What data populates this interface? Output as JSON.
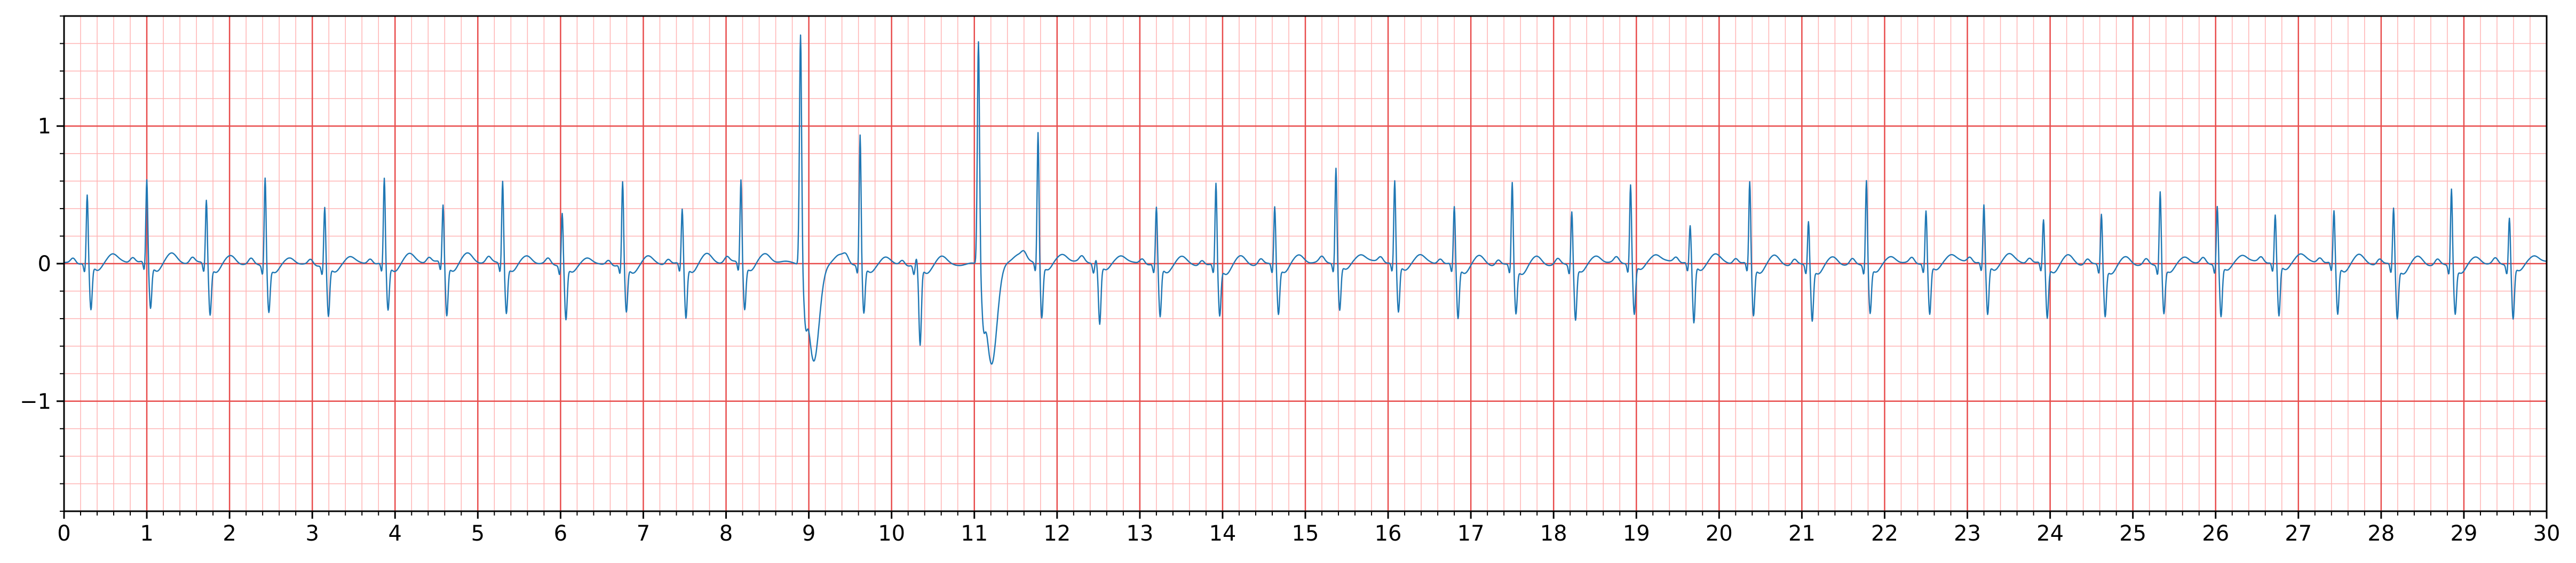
{
  "chart_data": {
    "type": "line",
    "title": "",
    "xlabel": "",
    "ylabel": "",
    "xlim": [
      0,
      30
    ],
    "ylim": [
      -1.8,
      1.8
    ],
    "x_ticks": [
      0,
      1,
      2,
      3,
      4,
      5,
      6,
      7,
      8,
      9,
      10,
      11,
      12,
      13,
      14,
      15,
      16,
      17,
      18,
      19,
      20,
      21,
      22,
      23,
      24,
      25,
      26,
      27,
      28,
      29,
      30
    ],
    "x_tick_labels": [
      "0",
      "1",
      "2",
      "3",
      "4",
      "5",
      "6",
      "7",
      "8",
      "9",
      "10",
      "11",
      "12",
      "13",
      "14",
      "15",
      "16",
      "17",
      "18",
      "19",
      "20",
      "21",
      "22",
      "23",
      "24",
      "25",
      "26",
      "27",
      "28",
      "29",
      "30"
    ],
    "y_ticks": [
      -1,
      0,
      1
    ],
    "y_tick_labels": [
      "−1",
      "0",
      "1"
    ],
    "grid": true,
    "major_grid": {
      "x_step": 1,
      "y_step": 1,
      "color": "#e84c4c"
    },
    "minor_grid": {
      "x_step": 0.2,
      "y_step": 0.2,
      "color": "#ffb3b3"
    },
    "line_color": "#1f77b4",
    "baseline": 0.0,
    "beats": [
      {
        "t": 0.28,
        "amp": 0.5,
        "s": -0.33,
        "type": "normal"
      },
      {
        "t": 1.0,
        "amp": 0.6,
        "s": -0.32,
        "type": "normal"
      },
      {
        "t": 1.72,
        "amp": 0.47,
        "s": -0.35,
        "type": "normal"
      },
      {
        "t": 2.43,
        "amp": 0.65,
        "s": -0.32,
        "type": "normal"
      },
      {
        "t": 3.15,
        "amp": 0.43,
        "s": -0.36,
        "type": "normal"
      },
      {
        "t": 3.87,
        "amp": 0.62,
        "s": -0.33,
        "type": "normal"
      },
      {
        "t": 4.58,
        "amp": 0.42,
        "s": -0.37,
        "type": "normal"
      },
      {
        "t": 5.3,
        "amp": 0.61,
        "s": -0.34,
        "type": "normal"
      },
      {
        "t": 6.02,
        "amp": 0.39,
        "s": -0.38,
        "type": "normal"
      },
      {
        "t": 6.75,
        "amp": 0.61,
        "s": -0.33,
        "type": "normal"
      },
      {
        "t": 7.47,
        "amp": 0.4,
        "s": -0.38,
        "type": "normal"
      },
      {
        "t": 8.18,
        "amp": 0.61,
        "s": -0.32,
        "type": "normal"
      },
      {
        "t": 8.9,
        "amp": 1.7,
        "s": -0.72,
        "type": "ectopic"
      },
      {
        "t": 9.62,
        "amp": 0.95,
        "s": -0.34,
        "type": "normal"
      },
      {
        "t": 10.3,
        "amp": 0.05,
        "s": -0.57,
        "type": "normal"
      },
      {
        "t": 11.05,
        "amp": 1.65,
        "s": -0.73,
        "type": "ectopic"
      },
      {
        "t": 11.77,
        "amp": 0.96,
        "s": -0.38,
        "type": "normal"
      },
      {
        "t": 12.47,
        "amp": 0.03,
        "s": -0.43,
        "type": "normal"
      },
      {
        "t": 13.2,
        "amp": 0.42,
        "s": -0.37,
        "type": "normal"
      },
      {
        "t": 13.92,
        "amp": 0.6,
        "s": -0.35,
        "type": "normal"
      },
      {
        "t": 14.63,
        "amp": 0.43,
        "s": -0.34,
        "type": "normal"
      },
      {
        "t": 15.37,
        "amp": 0.7,
        "s": -0.33,
        "type": "normal"
      },
      {
        "t": 16.08,
        "amp": 0.6,
        "s": -0.35,
        "type": "normal"
      },
      {
        "t": 16.8,
        "amp": 0.42,
        "s": -0.38,
        "type": "normal"
      },
      {
        "t": 17.5,
        "amp": 0.61,
        "s": -0.33,
        "type": "normal"
      },
      {
        "t": 18.22,
        "amp": 0.4,
        "s": -0.38,
        "type": "normal"
      },
      {
        "t": 18.93,
        "amp": 0.58,
        "s": -0.36,
        "type": "normal"
      },
      {
        "t": 19.65,
        "amp": 0.27,
        "s": -0.43,
        "type": "normal"
      },
      {
        "t": 20.37,
        "amp": 0.6,
        "s": -0.36,
        "type": "normal"
      },
      {
        "t": 21.08,
        "amp": 0.33,
        "s": -0.38,
        "type": "normal"
      },
      {
        "t": 21.78,
        "amp": 0.63,
        "s": -0.33,
        "type": "normal"
      },
      {
        "t": 22.5,
        "amp": 0.39,
        "s": -0.36,
        "type": "normal"
      },
      {
        "t": 23.2,
        "amp": 0.42,
        "s": -0.37,
        "type": "normal"
      },
      {
        "t": 23.92,
        "amp": 0.32,
        "s": -0.38,
        "type": "normal"
      },
      {
        "t": 24.62,
        "amp": 0.38,
        "s": -0.35,
        "type": "normal"
      },
      {
        "t": 25.33,
        "amp": 0.55,
        "s": -0.33,
        "type": "normal"
      },
      {
        "t": 26.02,
        "amp": 0.43,
        "s": -0.37,
        "type": "normal"
      },
      {
        "t": 26.72,
        "amp": 0.35,
        "s": -0.38,
        "type": "normal"
      },
      {
        "t": 27.43,
        "amp": 0.38,
        "s": -0.36,
        "type": "normal"
      },
      {
        "t": 28.15,
        "amp": 0.42,
        "s": -0.37,
        "type": "normal"
      },
      {
        "t": 28.85,
        "amp": 0.57,
        "s": -0.33,
        "type": "normal"
      },
      {
        "t": 29.55,
        "amp": 0.35,
        "s": -0.38,
        "type": "normal"
      }
    ]
  }
}
